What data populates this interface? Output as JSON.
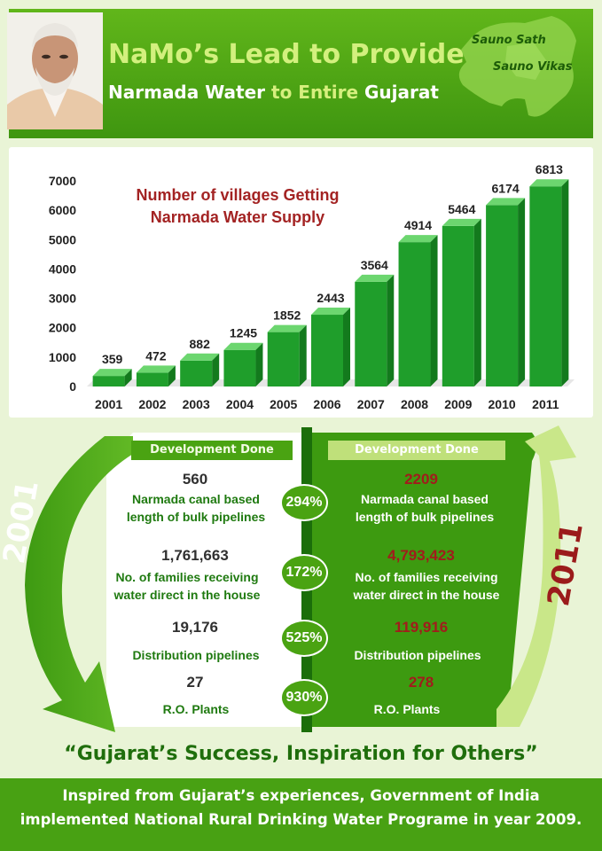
{
  "header": {
    "title_line1": "NaMo’s Lead to Provide",
    "title_line2_a": "Narmada Water",
    "title_line2_b": "to",
    "title_line2_c": "Entire",
    "title_line2_d": "Gujarat",
    "slogan_line1": "Sauno Sath",
    "slogan_line2": "Sauno Vikas"
  },
  "chart_data": {
    "type": "bar",
    "title_line1": "Number of villages Getting",
    "title_line2": "Narmada Water Supply",
    "categories": [
      "2001",
      "2002",
      "2003",
      "2004",
      "2005",
      "2006",
      "2007",
      "2008",
      "2009",
      "2010",
      "2011"
    ],
    "values": [
      359,
      472,
      882,
      1245,
      1852,
      2443,
      3564,
      4914,
      5464,
      6174,
      6813
    ],
    "yticks": [
      0,
      1000,
      2000,
      3000,
      4000,
      5000,
      6000,
      7000
    ],
    "ylim": [
      0,
      7000
    ],
    "xlabel": "",
    "ylabel": "",
    "grid": false,
    "colors": {
      "bar_front": "#1f9e2b",
      "bar_top": "#6cd66f",
      "bar_side": "#137a1d"
    }
  },
  "development": {
    "header_left": "Development Done",
    "header_right": "Development Done",
    "year_left": "2001",
    "year_right": "2011",
    "rows": [
      {
        "left_value": "560",
        "left_label_1": "Narmada canal based",
        "left_label_2": "length of bulk pipelines",
        "percent": "294%",
        "right_value": "2209",
        "right_label_1": "Narmada canal based",
        "right_label_2": "length of bulk pipelines"
      },
      {
        "left_value": "1,761,663",
        "left_label_1": "No. of families receiving",
        "left_label_2": "water direct in the house",
        "percent": "172%",
        "right_value": "4,793,423",
        "right_label_1": "No. of families receiving",
        "right_label_2": "water direct in the house"
      },
      {
        "left_value": "19,176",
        "left_label_1": "Distribution pipelines",
        "left_label_2": "",
        "percent": "525%",
        "right_value": "119,916",
        "right_label_1": "Distribution pipelines",
        "right_label_2": ""
      },
      {
        "left_value": "27",
        "left_label_1": "R.O. Plants",
        "left_label_2": "",
        "percent": "930%",
        "right_value": "278",
        "right_label_1": "R.O. Plants",
        "right_label_2": ""
      }
    ]
  },
  "quote": "“Gujarat’s Success, Inspiration for Others”",
  "footer": {
    "line1": "Inspired from Gujarat’s experiences, Government of India",
    "line2": "implemented National Rural Drinking Water Programe in year 2009."
  }
}
